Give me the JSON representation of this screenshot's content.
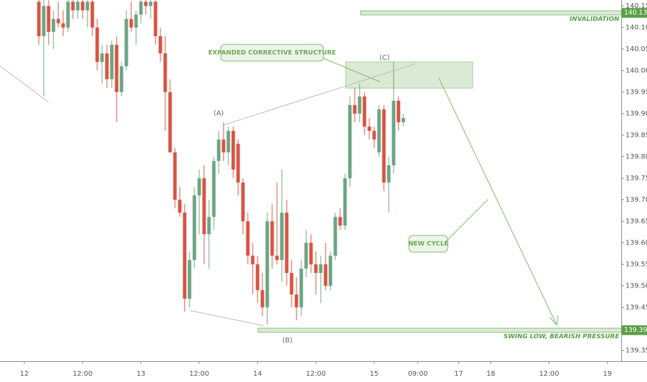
{
  "chart_data": {
    "type": "candlestick",
    "x": [
      3,
      4,
      5,
      6,
      7,
      8,
      9,
      10,
      11,
      12,
      13,
      14,
      15,
      16,
      17,
      18,
      19,
      20,
      21,
      22,
      23,
      24,
      25,
      26,
      27,
      28,
      29,
      30,
      31,
      32,
      33,
      34,
      35,
      36,
      37,
      38,
      39,
      40,
      41,
      42,
      43,
      44,
      45,
      46,
      47,
      48,
      49,
      50,
      51,
      52,
      53,
      54,
      55,
      56,
      57,
      58,
      59,
      60,
      61,
      62,
      63,
      64,
      65,
      66,
      67,
      68,
      69,
      70,
      71,
      72,
      73,
      74,
      75,
      76,
      77,
      78
    ],
    "open": [
      140.16,
      140.08,
      140.15,
      140.09,
      140.12,
      140.11,
      140.1,
      140.16,
      140.14,
      140.16,
      140.14,
      140.16,
      140.1,
      140.02,
      140.04,
      139.98,
      140.06,
      139.95,
      140.01,
      140.12,
      140.1,
      140.13,
      140.16,
      140.15,
      140.16,
      140.08,
      140.04,
      139.95,
      139.81,
      139.7,
      139.67,
      139.47,
      139.56,
      139.71,
      139.75,
      139.62,
      139.66,
      139.79,
      139.84,
      139.81,
      139.86,
      139.83,
      139.74,
      139.65,
      139.57,
      139.55,
      139.49,
      139.45,
      139.65,
      139.57,
      139.56,
      139.67,
      139.53,
      139.48,
      139.45,
      139.54,
      139.6,
      139.55,
      139.53,
      139.55,
      139.5,
      139.57,
      139.66,
      139.64,
      139.75,
      139.92,
      139.9,
      139.94,
      139.87,
      139.86,
      139.81,
      139.91,
      139.74,
      139.78,
      139.93,
      139.88
    ],
    "high": [
      140.17,
      140.17,
      140.17,
      140.14,
      140.16,
      140.14,
      140.17,
      140.17,
      140.17,
      140.17,
      140.17,
      140.17,
      140.12,
      140.06,
      140.06,
      140.07,
      140.08,
      140.02,
      140.14,
      140.16,
      140.14,
      140.17,
      140.17,
      140.17,
      140.17,
      140.1,
      140.08,
      139.98,
      139.82,
      139.73,
      139.69,
      139.58,
      139.73,
      139.77,
      139.78,
      139.7,
      139.8,
      139.86,
      139.88,
      139.87,
      139.87,
      139.84,
      139.75,
      139.67,
      139.6,
      139.57,
      139.53,
      139.67,
      139.69,
      139.74,
      139.77,
      139.7,
      139.56,
      139.52,
      139.56,
      139.63,
      139.62,
      139.58,
      139.57,
      139.6,
      139.58,
      139.67,
      139.68,
      139.76,
      139.94,
      139.96,
      139.97,
      139.95,
      139.89,
      139.87,
      139.92,
      139.92,
      139.8,
      140.02,
      139.94,
      139.9
    ],
    "low": [
      140.06,
      139.94,
      140.06,
      140.05,
      140.1,
      140.08,
      140.09,
      140.12,
      140.12,
      140.12,
      140.1,
      140.08,
      140.0,
      139.97,
      139.96,
      139.96,
      139.88,
      139.94,
      140.0,
      140.09,
      140.06,
      140.11,
      140.13,
      140.12,
      140.06,
      140.02,
      139.86,
      139.81,
      139.68,
      139.66,
      139.44,
      139.45,
      139.54,
      139.62,
      139.55,
      139.54,
      139.63,
      139.76,
      139.79,
      139.78,
      139.75,
      139.71,
      139.62,
      139.55,
      139.48,
      139.46,
      139.43,
      139.41,
      139.54,
      139.55,
      139.51,
      139.5,
      139.45,
      139.42,
      139.43,
      139.52,
      139.53,
      139.48,
      139.46,
      139.49,
      139.49,
      139.56,
      139.63,
      139.63,
      139.73,
      139.88,
      139.88,
      139.85,
      139.84,
      139.82,
      139.8,
      139.72,
      139.67,
      139.76,
      139.86,
      139.87
    ],
    "close": [
      140.08,
      140.15,
      140.09,
      140.12,
      140.11,
      140.1,
      140.16,
      140.14,
      140.16,
      140.14,
      140.16,
      140.1,
      140.02,
      140.04,
      139.98,
      140.06,
      139.95,
      140.01,
      140.12,
      140.1,
      140.13,
      140.16,
      140.15,
      140.16,
      140.08,
      140.04,
      139.95,
      139.81,
      139.7,
      139.67,
      139.47,
      139.56,
      139.71,
      139.75,
      139.62,
      139.66,
      139.79,
      139.84,
      139.81,
      139.86,
      139.77,
      139.74,
      139.65,
      139.57,
      139.55,
      139.49,
      139.45,
      139.65,
      139.57,
      139.56,
      139.67,
      139.53,
      139.48,
      139.45,
      139.54,
      139.6,
      139.55,
      139.53,
      139.55,
      139.5,
      139.57,
      139.66,
      139.64,
      139.75,
      139.92,
      139.9,
      139.94,
      139.87,
      139.86,
      139.84,
      139.91,
      139.74,
      139.78,
      139.93,
      139.88,
      139.89
    ],
    "up_color": "#6ba583",
    "down_color": "#d75442",
    "ylim": [
      139.325,
      140.164
    ],
    "yticks": [
      {
        "value": 140.15,
        "label": "140.150"
      },
      {
        "value": 140.1,
        "label": "140.100"
      },
      {
        "value": 140.05,
        "label": "140.050"
      },
      {
        "value": 140.0,
        "label": "140.000"
      },
      {
        "value": 139.95,
        "label": "139.950"
      },
      {
        "value": 139.9,
        "label": "139.900"
      },
      {
        "value": 139.85,
        "label": "139.850"
      },
      {
        "value": 139.8,
        "label": "139.800"
      },
      {
        "value": 139.75,
        "label": "139.750"
      },
      {
        "value": 139.7,
        "label": "139.700"
      },
      {
        "value": 139.65,
        "label": "139.650"
      },
      {
        "value": 139.6,
        "label": "139.600"
      },
      {
        "value": 139.55,
        "label": "139.550"
      },
      {
        "value": 139.5,
        "label": "139.500"
      },
      {
        "value": 139.45,
        "label": "139.450"
      },
      {
        "value": 139.4,
        "label": "139.400"
      },
      {
        "value": 139.35,
        "label": "139.350"
      }
    ],
    "xlim": [
      -5,
      122.86
    ],
    "xticks": [
      {
        "value": 0,
        "label": "12"
      },
      {
        "value": 12,
        "label": "12:00"
      },
      {
        "value": 24,
        "label": "13"
      },
      {
        "value": 36,
        "label": "12:00"
      },
      {
        "value": 48,
        "label": "14"
      },
      {
        "value": 60,
        "label": "12:00"
      },
      {
        "value": 72,
        "label": "15"
      },
      {
        "value": 81,
        "label": "09:00"
      },
      {
        "value": 89.4,
        "label": "17"
      },
      {
        "value": 96,
        "label": "18"
      },
      {
        "value": 108,
        "label": "12:00"
      },
      {
        "value": 120,
        "label": "19"
      }
    ],
    "levels": [
      {
        "value": 140.134,
        "label": "INVALIDATION",
        "from": 69.2
      },
      {
        "value": 139.397,
        "label": "SWING LOW, BEARISH PRESSURE",
        "from": 48.1
      }
    ],
    "annotations": {
      "structure": "EXPANDED CORRECTIVE STRUCTURE",
      "new_cycle": "NEW CYCLE",
      "a": "(A)",
      "b": "(B)",
      "c": "(C)"
    }
  }
}
